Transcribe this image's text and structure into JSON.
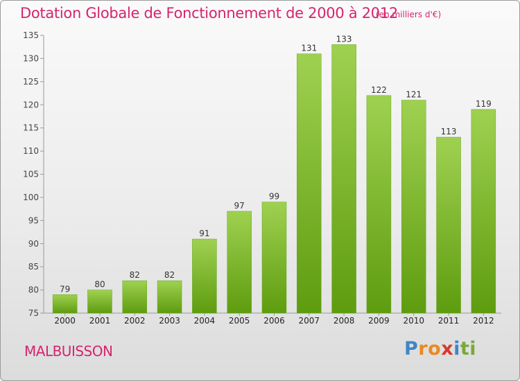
{
  "header": {
    "title": "Dotation Globale de Fonctionnement de 2000 à 2012",
    "subtitle": "(en milliers d'€)"
  },
  "footer": {
    "commune": "MALBUISSON",
    "logo_letters": [
      "P",
      "r",
      "o",
      "x",
      "i",
      "ti"
    ]
  },
  "colors": {
    "bar_light": "#9fd151",
    "bar_dark": "#5e9c0f",
    "text_accent": "#d6246e"
  },
  "chart_data": {
    "type": "bar",
    "categories": [
      "2000",
      "2001",
      "2002",
      "2003",
      "2004",
      "2005",
      "2006",
      "2007",
      "2008",
      "2009",
      "2010",
      "2011",
      "2012"
    ],
    "values": [
      79,
      80,
      82,
      82,
      91,
      97,
      99,
      131,
      133,
      122,
      121,
      113,
      119
    ],
    "title": "Dotation Globale de Fonctionnement de 2000 à 2012",
    "subtitle": "(en milliers d'€)",
    "ylim": [
      75,
      135
    ],
    "yticks": [
      75,
      80,
      85,
      90,
      95,
      100,
      105,
      110,
      115,
      120,
      125,
      130,
      135
    ],
    "grid": false,
    "data_labels": true
  }
}
